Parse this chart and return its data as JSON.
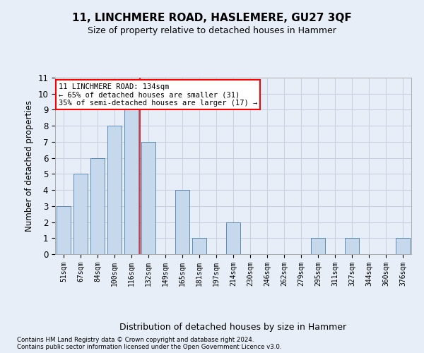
{
  "title": "11, LINCHMERE ROAD, HASLEMERE, GU27 3QF",
  "subtitle": "Size of property relative to detached houses in Hammer",
  "xlabel_bottom": "Distribution of detached houses by size in Hammer",
  "ylabel": "Number of detached properties",
  "footer_line1": "Contains HM Land Registry data © Crown copyright and database right 2024.",
  "footer_line2": "Contains public sector information licensed under the Open Government Licence v3.0.",
  "bar_labels": [
    "51sqm",
    "67sqm",
    "84sqm",
    "100sqm",
    "116sqm",
    "132sqm",
    "149sqm",
    "165sqm",
    "181sqm",
    "197sqm",
    "214sqm",
    "230sqm",
    "246sqm",
    "262sqm",
    "279sqm",
    "295sqm",
    "311sqm",
    "327sqm",
    "344sqm",
    "360sqm",
    "376sqm"
  ],
  "bar_values": [
    3,
    5,
    6,
    8,
    9,
    7,
    0,
    4,
    1,
    0,
    2,
    0,
    0,
    0,
    0,
    1,
    0,
    1,
    0,
    0,
    1
  ],
  "bar_color": "#c6d9ec",
  "bar_edge_color": "#5a8ab5",
  "grid_color": "#c8cfe0",
  "annotation_text": "11 LINCHMERE ROAD: 134sqm\n← 65% of detached houses are smaller (31)\n35% of semi-detached houses are larger (17) →",
  "annotation_box_color": "white",
  "annotation_box_edge": "red",
  "vline_color": "red",
  "vline_x": 4.5,
  "ylim": [
    0,
    11
  ],
  "yticks": [
    0,
    1,
    2,
    3,
    4,
    5,
    6,
    7,
    8,
    9,
    10,
    11
  ],
  "background_color": "#e8eef8",
  "plot_bg_color": "#e8eef8"
}
